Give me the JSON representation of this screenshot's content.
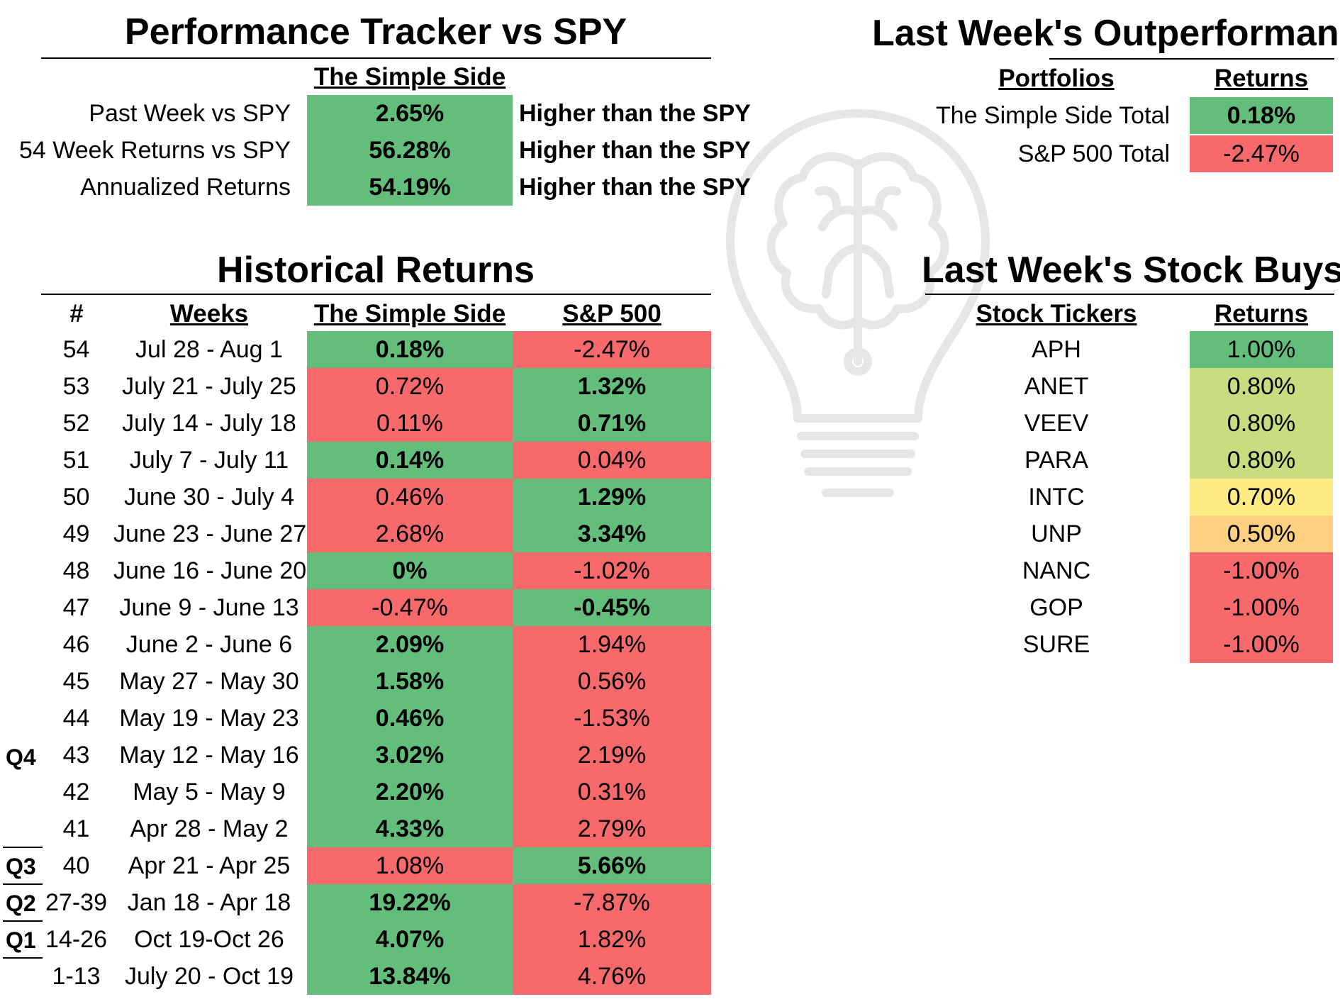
{
  "colors": {
    "green": "#63be7b",
    "red": "#f8696b",
    "lightgreen": "#c8dd80",
    "yellow": "#ffeb84",
    "orange": "#fdd17f"
  },
  "tracker": {
    "title": "Performance Tracker vs SPY",
    "column_header": "The Simple Side",
    "rows": [
      {
        "label": "Past Week vs SPY",
        "value": "2.65%",
        "note": "Higher than the SPY"
      },
      {
        "label": "54 Week Returns vs SPY",
        "value": "56.28%",
        "note": "Higher than the SPY"
      },
      {
        "label": "Annualized Returns",
        "value": "54.19%",
        "note": "Higher than the SPY"
      }
    ]
  },
  "outperformance": {
    "title": "Last Week's Outperformance",
    "headers": {
      "portfolios": "Portfolios",
      "returns": "Returns"
    },
    "rows": [
      {
        "name": "The Simple Side Total",
        "value": "0.18%"
      },
      {
        "name": "S&P 500 Total",
        "value": "-2.47%"
      }
    ]
  },
  "historical": {
    "title": "Historical Returns",
    "headers": {
      "num": "#",
      "weeks": "Weeks",
      "simple": "The Simple Side",
      "sp": "S&P 500"
    },
    "quarters": [
      "Q4",
      "Q3",
      "Q2",
      "Q1"
    ],
    "rows": [
      {
        "num": "54",
        "weeks": "Jul 28 - Aug 1",
        "simple": "0.18%",
        "sp": "-2.47%"
      },
      {
        "num": "53",
        "weeks": "July 21 - July 25",
        "simple": "0.72%",
        "sp": "1.32%"
      },
      {
        "num": "52",
        "weeks": "July 14 - July 18",
        "simple": "0.11%",
        "sp": "0.71%"
      },
      {
        "num": "51",
        "weeks": "July 7 - July 11",
        "simple": "0.14%",
        "sp": "0.04%"
      },
      {
        "num": "50",
        "weeks": "June 30 - July 4",
        "simple": "0.46%",
        "sp": "1.29%"
      },
      {
        "num": "49",
        "weeks": "June 23 - June 27",
        "simple": "2.68%",
        "sp": "3.34%"
      },
      {
        "num": "48",
        "weeks": "June 16 - June 20",
        "simple": "0%",
        "sp": "-1.02%"
      },
      {
        "num": "47",
        "weeks": "June 9 - June 13",
        "simple": "-0.47%",
        "sp": "-0.45%"
      },
      {
        "num": "46",
        "weeks": "June 2 - June 6",
        "simple": "2.09%",
        "sp": "1.94%"
      },
      {
        "num": "45",
        "weeks": "May 27 - May 30",
        "simple": "1.58%",
        "sp": "0.56%"
      },
      {
        "num": "44",
        "weeks": "May 19 - May 23",
        "simple": "0.46%",
        "sp": "-1.53%"
      },
      {
        "num": "43",
        "weeks": "May 12 - May 16",
        "simple": "3.02%",
        "sp": "2.19%"
      },
      {
        "num": "42",
        "weeks": "May 5 - May 9",
        "simple": "2.20%",
        "sp": "0.31%"
      },
      {
        "num": "41",
        "weeks": "Apr 28 - May 2",
        "simple": "4.33%",
        "sp": "2.79%"
      },
      {
        "num": "40",
        "weeks": "Apr 21 - Apr 25",
        "simple": "1.08%",
        "sp": "5.66%"
      },
      {
        "num": "27-39",
        "weeks": "Jan 18 - Apr 18",
        "simple": "19.22%",
        "sp": "-7.87%"
      },
      {
        "num": "14-26",
        "weeks": "Oct 19-Oct 26",
        "simple": "4.07%",
        "sp": "1.82%"
      },
      {
        "num": "1-13",
        "weeks": "July 20 - Oct 19",
        "simple": "13.84%",
        "sp": "4.76%"
      }
    ]
  },
  "stock_buys": {
    "title": "Last Week's Stock Buys",
    "headers": {
      "tickers": "Stock Tickers",
      "returns": "Returns"
    },
    "rows": [
      {
        "ticker": "APH",
        "value": "1.00%",
        "fill": 1.0
      },
      {
        "ticker": "ANET",
        "value": "0.80%",
        "fill": 0.8
      },
      {
        "ticker": "VEEV",
        "value": "0.80%",
        "fill": 0.8
      },
      {
        "ticker": "PARA",
        "value": "0.80%",
        "fill": 0.8
      },
      {
        "ticker": "INTC",
        "value": "0.70%",
        "fill": 0.7
      },
      {
        "ticker": "UNP",
        "value": "0.50%",
        "fill": 0.5
      },
      {
        "ticker": "NANC",
        "value": "-1.00%",
        "fill": -1.0
      },
      {
        "ticker": "GOP",
        "value": "-1.00%",
        "fill": -1.0
      },
      {
        "ticker": "SURE",
        "value": "-1.00%",
        "fill": -1.0
      }
    ]
  }
}
